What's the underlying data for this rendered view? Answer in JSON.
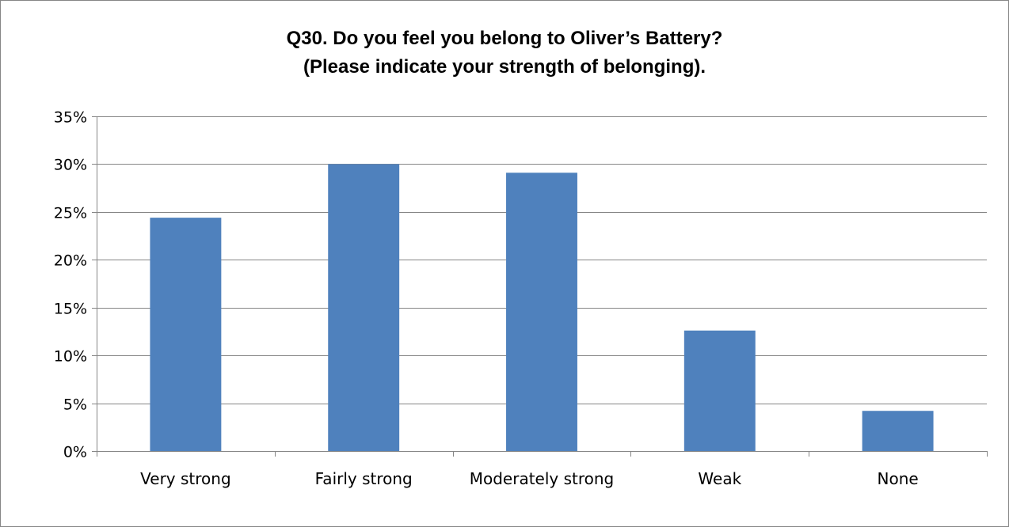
{
  "chart_data": {
    "type": "bar",
    "title_lines": [
      "Q30.  Do you feel you belong to Oliver’s Battery?",
      "(Please indicate your strength of belonging)."
    ],
    "categories": [
      "Very strong",
      "Fairly strong",
      "Moderately strong",
      "Weak",
      "None"
    ],
    "values": [
      24.4,
      30.0,
      29.1,
      12.6,
      4.2
    ],
    "ylim": [
      0,
      35
    ],
    "yticks": [
      0,
      5,
      10,
      15,
      20,
      25,
      30,
      35
    ],
    "ytick_labels": [
      "0%",
      "5%",
      "10%",
      "15%",
      "20%",
      "25%",
      "30%",
      "35%"
    ],
    "y_unit": "%",
    "grid": true,
    "legend": "none",
    "colors": {
      "bar": "#4f81bd",
      "grid": "#868686",
      "frame": "#868686"
    }
  }
}
